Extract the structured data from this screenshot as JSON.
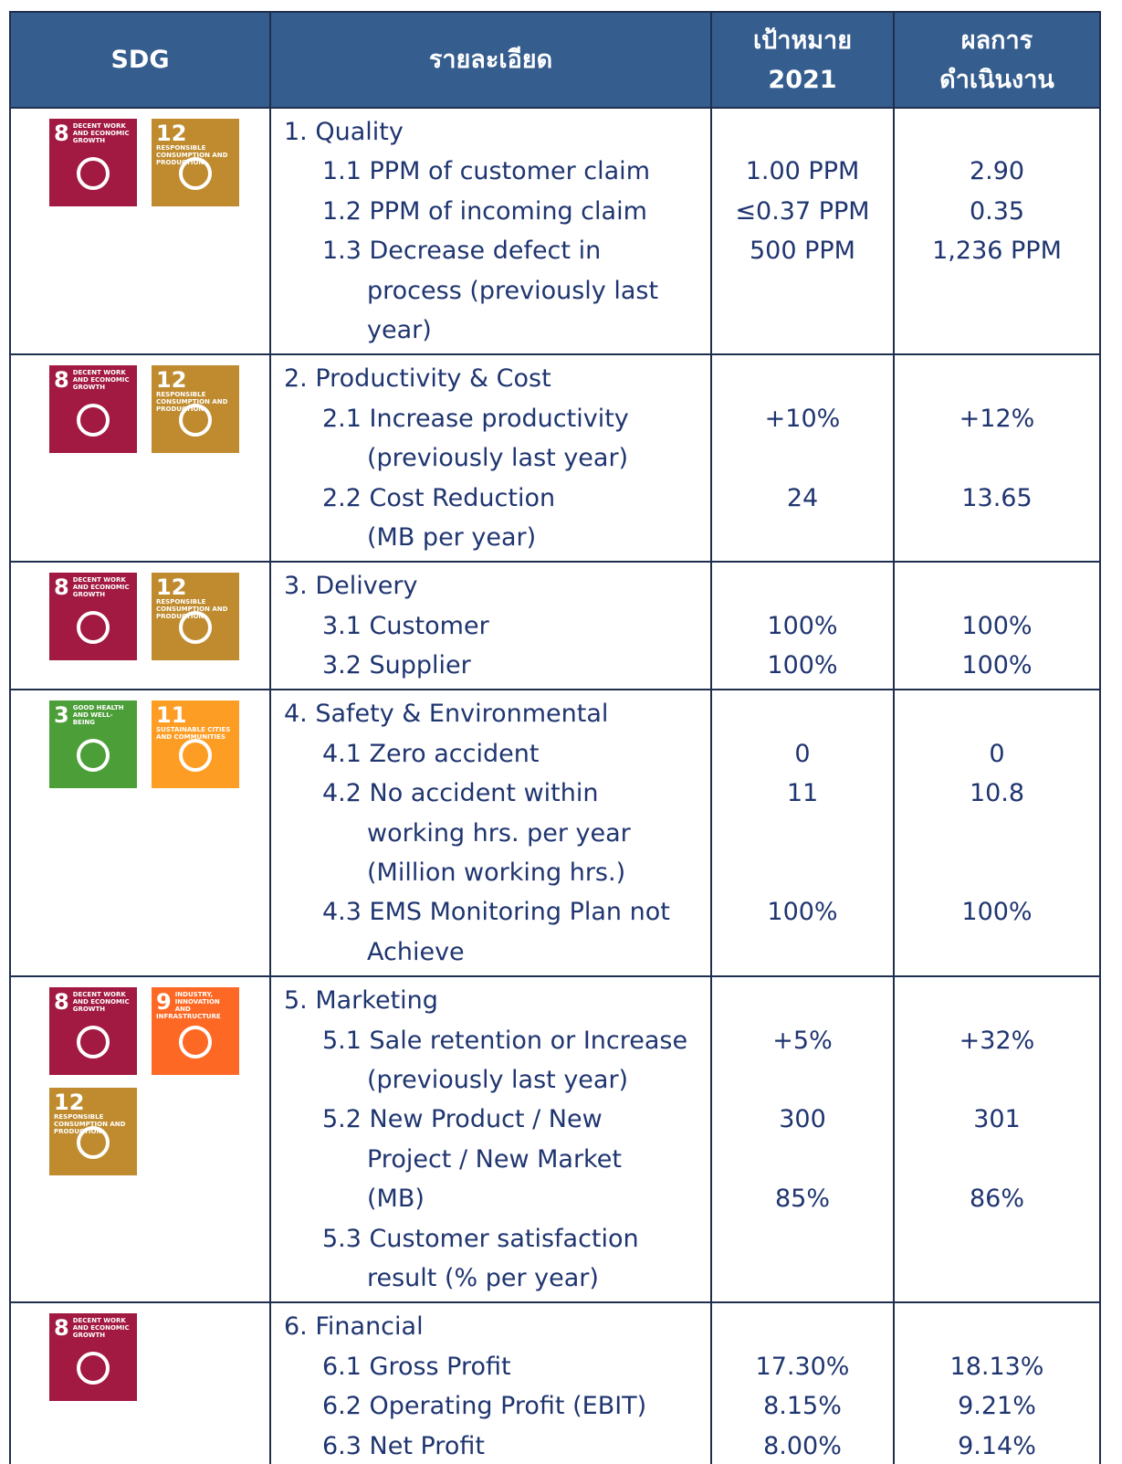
{
  "header": {
    "columns": [
      [
        "SDG"
      ],
      [
        "รายละเอียด"
      ],
      [
        "เป้าหมาย",
        "2021"
      ],
      [
        "ผลการ",
        "ดำเนินงาน"
      ]
    ]
  },
  "table": {
    "rows": [
      {
        "icons": [
          {
            "number": "8",
            "label": "DECENT WORK AND ECONOMIC GROWTH",
            "color": "#a21942"
          },
          {
            "number": "12",
            "label": "RESPONSIBLE CONSUMPTION AND PRODUCTION",
            "color": "#bf8b2e"
          }
        ],
        "lines": [
          {
            "detail": "1. Quality"
          },
          {
            "detail": "1.1 PPM of customer claim",
            "target": "1.00 PPM",
            "result": "2.90"
          },
          {
            "detail": "1.2 PPM of incoming claim",
            "target": "≤0.37 PPM",
            "result": "0.35"
          },
          {
            "detail": "1.3 Decrease defect in",
            "target": "500 PPM",
            "result": "1,236 PPM"
          },
          {
            "detail": "process (previously last"
          },
          {
            "detail": "year)"
          }
        ]
      },
      {
        "icons": [
          {
            "number": "8",
            "label": "DECENT WORK AND ECONOMIC GROWTH",
            "color": "#a21942"
          },
          {
            "number": "12",
            "label": "RESPONSIBLE CONSUMPTION AND PRODUCTION",
            "color": "#bf8b2e"
          }
        ],
        "lines": [
          {
            "detail": "2. Productivity & Cost"
          },
          {
            "detail": "2.1 Increase productivity",
            "target": "+10%",
            "result": "+12%"
          },
          {
            "detail": "(previously last year)"
          },
          {
            "detail": "2.2 Cost Reduction",
            "target": "24",
            "result": "13.65"
          },
          {
            "detail": "(MB per year)"
          }
        ]
      },
      {
        "icons": [
          {
            "number": "8",
            "label": "DECENT WORK AND ECONOMIC GROWTH",
            "color": "#a21942"
          },
          {
            "number": "12",
            "label": "RESPONSIBLE CONSUMPTION AND PRODUCTION",
            "color": "#bf8b2e"
          }
        ],
        "lines": [
          {
            "detail": "3. Delivery"
          },
          {
            "detail": "3.1 Customer",
            "target": "100%",
            "result": "100%"
          },
          {
            "detail": "3.2 Supplier",
            "target": "100%",
            "result": "100%"
          }
        ]
      },
      {
        "icons": [
          {
            "number": "3",
            "label": "GOOD HEALTH AND WELL-BEING",
            "color": "#4c9f38"
          },
          {
            "number": "11",
            "label": "SUSTAINABLE CITIES AND COMMUNITIES",
            "color": "#fd9d24"
          }
        ],
        "lines": [
          {
            "detail": "4. Safety & Environmental"
          },
          {
            "detail": "4.1 Zero accident",
            "target": "0",
            "result": "0"
          },
          {
            "detail": "4.2 No accident within",
            "target": "11",
            "result": "10.8"
          },
          {
            "detail": "working hrs. per year"
          },
          {
            "detail": "(Million working hrs.)"
          },
          {
            "detail": "4.3 EMS Monitoring Plan not",
            "target": "100%",
            "result": "100%"
          },
          {
            "detail": "Achieve"
          }
        ]
      },
      {
        "icons": [
          {
            "number": "8",
            "label": "DECENT WORK AND ECONOMIC GROWTH",
            "color": "#a21942"
          },
          {
            "number": "9",
            "label": "INDUSTRY, INNOVATION AND INFRASTRUCTURE",
            "color": "#fd6925"
          },
          {
            "number": "12",
            "label": "RESPONSIBLE CONSUMPTION AND PRODUCTION",
            "color": "#bf8b2e"
          }
        ],
        "lines": [
          {
            "detail": "5. Marketing"
          },
          {
            "detail": "5.1 Sale retention or Increase",
            "target": "+5%",
            "result": "+32%"
          },
          {
            "detail": "(previously last year)"
          },
          {
            "detail": "5.2 New Product / New",
            "target": "300",
            "result": "301"
          },
          {
            "detail": "Project / New Market"
          },
          {
            "detail": "(MB)",
            "target": "85%",
            "result": "86%"
          },
          {
            "detail": "5.3 Customer satisfaction"
          },
          {
            "detail": "result (% per year)"
          }
        ]
      },
      {
        "icons": [
          {
            "number": "8",
            "label": "DECENT WORK AND ECONOMIC GROWTH",
            "color": "#a21942"
          }
        ],
        "lines": [
          {
            "detail": "6. Financial"
          },
          {
            "detail": "6.1 Gross Profit",
            "target": "17.30%",
            "result": "18.13%"
          },
          {
            "detail": "6.2 Operating Profit (EBIT)",
            "target": "8.15%",
            "result": "9.21%"
          },
          {
            "detail": "6.3 Net Profit",
            "target": "8.00%",
            "result": "9.14%"
          }
        ]
      }
    ]
  }
}
